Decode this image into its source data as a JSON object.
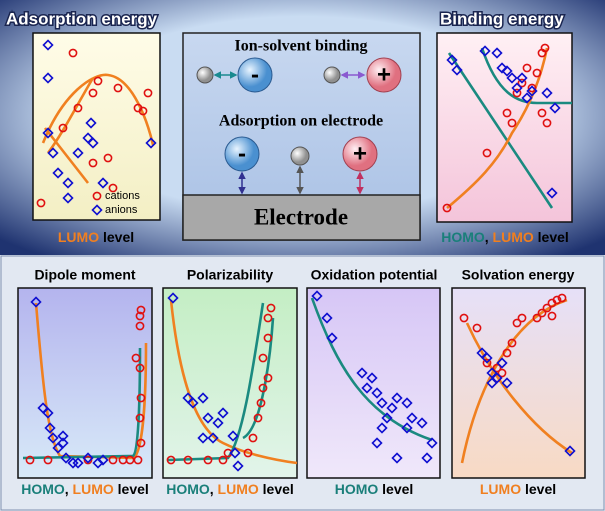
{
  "panels": [
    {
      "title": "Adsorption energy",
      "caption": [
        {
          "text": "LUMO",
          "color": "#f07f20"
        },
        {
          "text": " level",
          "color": "#000000"
        }
      ],
      "legend": {
        "cations": "cations",
        "anions": "anions"
      }
    },
    {
      "title": "Binding energy",
      "caption": [
        {
          "text": "HOMO",
          "color": "#1a7f7a"
        },
        {
          "text": ", ",
          "color": "#000000"
        },
        {
          "text": "LUMO",
          "color": "#f07f20"
        },
        {
          "text": " level",
          "color": "#000000"
        }
      ]
    },
    {
      "title": "Dipole moment",
      "caption": [
        {
          "text": "HOMO",
          "color": "#1a7f7a"
        },
        {
          "text": ", ",
          "color": "#000000"
        },
        {
          "text": "LUMO",
          "color": "#f07f20"
        },
        {
          "text": " level",
          "color": "#000000"
        }
      ]
    },
    {
      "title": "Polarizability",
      "caption": [
        {
          "text": "HOMO",
          "color": "#1a7f7a"
        },
        {
          "text": ", ",
          "color": "#000000"
        },
        {
          "text": "LUMO",
          "color": "#f07f20"
        },
        {
          "text": " level",
          "color": "#000000"
        }
      ]
    },
    {
      "title": "Oxidation potential",
      "caption": [
        {
          "text": "HOMO",
          "color": "#1a7f7a"
        },
        {
          "text": " level",
          "color": "#000000"
        }
      ]
    },
    {
      "title": "Solvation energy",
      "caption": [
        {
          "text": "LUMO",
          "color": "#f07f20"
        },
        {
          "text": " level",
          "color": "#000000"
        }
      ]
    }
  ],
  "center": {
    "binding_title": "Ion-solvent binding",
    "adsorption_title": "Adsorption on electrode",
    "anion": "-",
    "cation": "+",
    "electrode": "Electrode"
  }
}
